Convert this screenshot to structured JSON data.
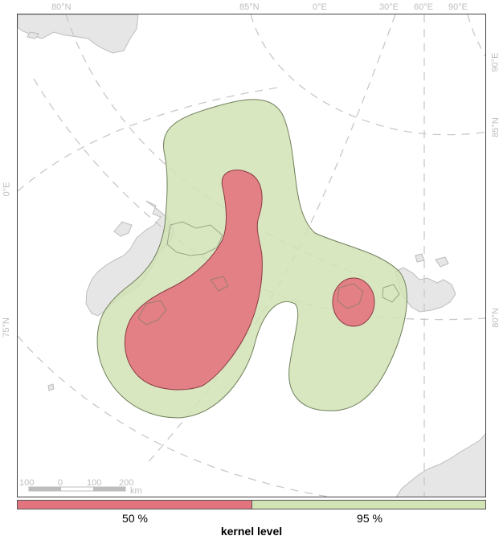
{
  "map": {
    "graticule_labels": {
      "top": [
        "80°N",
        "85°N",
        "0°E",
        "30°E",
        "60°E",
        "90°E"
      ],
      "left": [
        "0°E",
        "75°N"
      ],
      "right": [
        "90°E",
        "85°N",
        "80°N"
      ]
    },
    "scale_bar": {
      "ticks": [
        "100",
        "0",
        "100",
        "200"
      ],
      "unit": "km"
    },
    "colors": {
      "land": "#e6e6e6",
      "coast": "#bfbfbf",
      "graticule": "#c8c8c8",
      "kernel_50": "#e2747f",
      "kernel_95": "#d2e3b6"
    }
  },
  "legend": {
    "title": "kernel level",
    "items": [
      {
        "label": "50 %",
        "color": "#e2747f"
      },
      {
        "label": "95 %",
        "color": "#d2e3b6"
      }
    ]
  }
}
